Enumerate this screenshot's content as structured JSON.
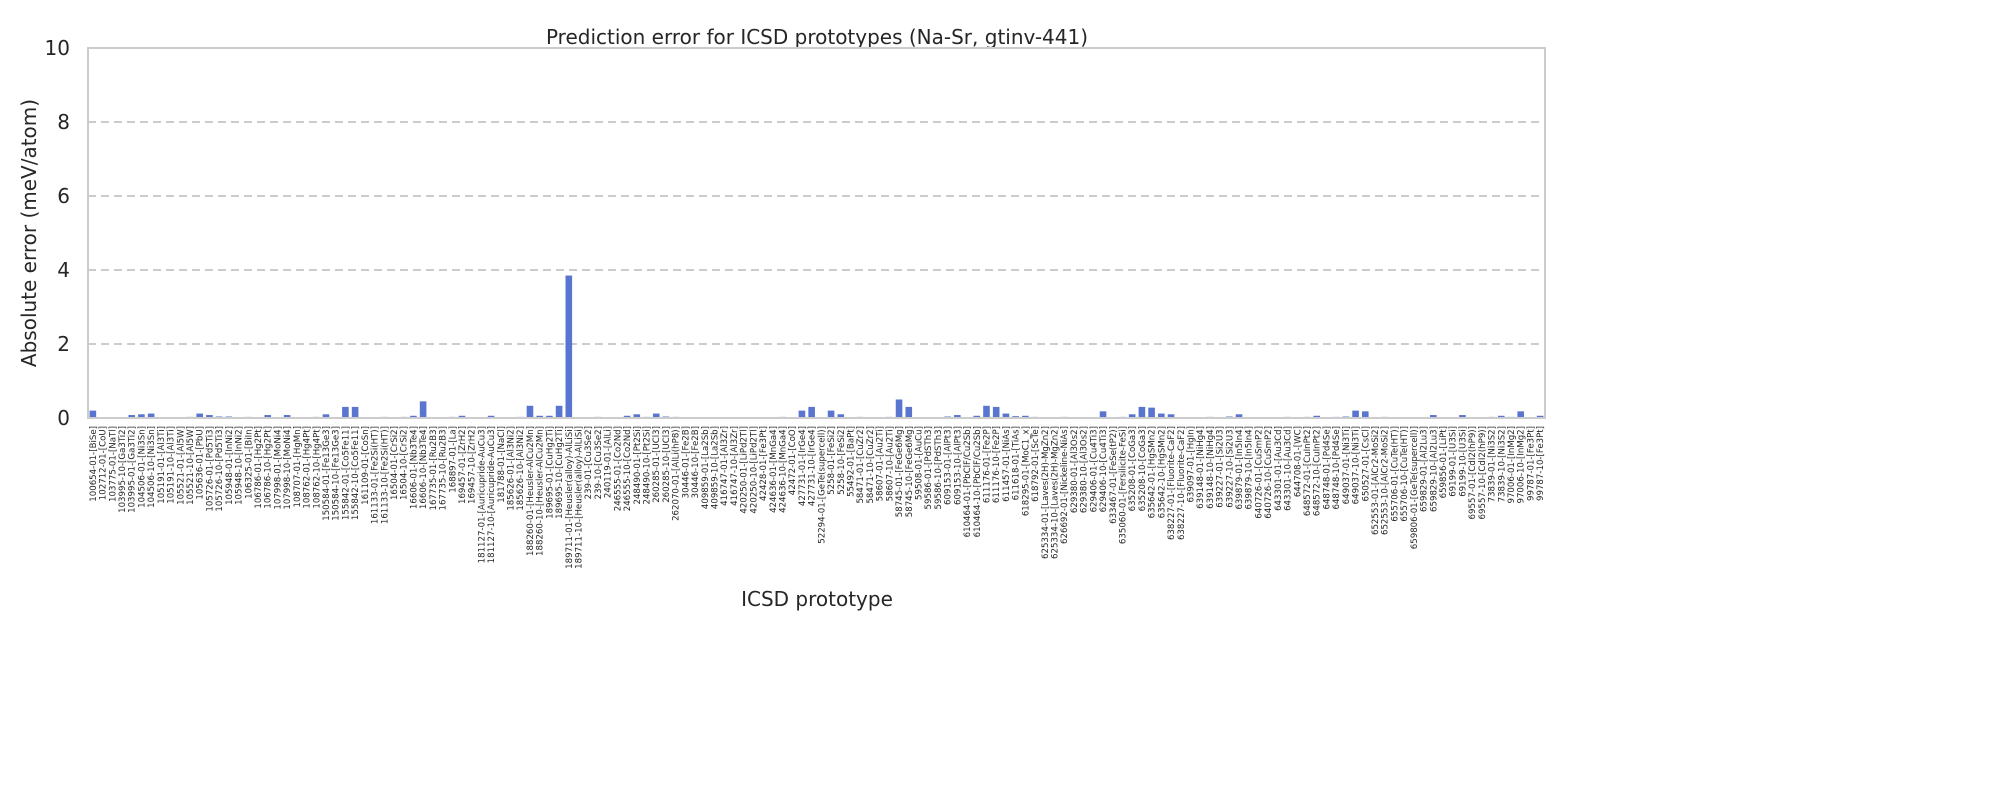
{
  "chart_data": {
    "type": "bar",
    "title": "Prediction error for ICSD prototypes (Na-Sr, gtinv-441)",
    "xlabel": "ICSD prototype",
    "ylabel": "Absolute error (meV/atom)",
    "ylim": [
      0,
      10
    ],
    "yticks": [
      0,
      2,
      4,
      6,
      8,
      10
    ],
    "grid": "horizontal dashed",
    "bar_color": "#5975cf",
    "categories": [
      "100654-01-[BiSe]",
      "102712-01-[CoU]",
      "103775-01-[NaTl]",
      "103995-10-[Ga3Ti2]",
      "103995-01-[Ga3Ti2]",
      "104506-01-[Ni3Sn]",
      "104506-10-[Ni3Sn]",
      "105191-01-[Al3Ti]",
      "105191-10-[Al3Ti]",
      "105521-01-[Al5W]",
      "105521-10-[Al5W]",
      "105636-01-[PbU]",
      "105726-01-[Pd5Ti3]",
      "105726-10-[Pd5Ti3]",
      "105948-01-[InNi2]",
      "105948-10-[InNi2]",
      "106325-01-[BiIn]",
      "106786-01-[Hg2Pt]",
      "106786-10-[Hg2Pt]",
      "107998-01-[MoNi4]",
      "107998-10-[MoNi4]",
      "108707-01-[HgMn]",
      "108762-01-[Hg4Pt]",
      "108762-10-[Hg4Pt]",
      "150584-01-[Fe13Ge3]",
      "150584-10-[Fe13Ge3]",
      "155842-01-[Co5Fe11]",
      "155842-10-[Co5Fe11]",
      "161109-01-[CoSn]",
      "161133-01-[Fe2Si(HT)]",
      "161133-10-[Fe2Si(HT)]",
      "16504-01-[CrSi2]",
      "16504-10-[CrSi2]",
      "16606-01-[Nb3Te4]",
      "16606-10-[Nb3Te4]",
      "167735-01-[Ru2B3]",
      "167735-10-[Ru2B3]",
      "168897-01-[La]",
      "169457-01-[ZrH2]",
      "169457-10-[ZrH2]",
      "181127-01-[Auricupride-AuCu3]",
      "181127-10-[Auricupride-AuCu3]",
      "181788-01-[NaCl]",
      "185626-01-[Al3Ni2]",
      "185626-10-[Al3Ni2]",
      "188260-01-[Heusler-AlCu2Mn]",
      "188260-10-[Heusler-AlCu2Mn]",
      "189695-01-[CuHg2Ti]",
      "189695-10-[CuHg2Ti]",
      "189711-01-[Heusler(alloy)-AlLiSi]",
      "189711-10-[Heusler(alloy)-AlLiSi]",
      "239-01-[Cu3Se2]",
      "239-10-[Cu3Se2]",
      "240119-01-[AlLi]",
      "246555-01-[Co2Nd]",
      "246555-10-[Co2Nd]",
      "248490-01-[Pt2Si]",
      "248490-10-[Pt2Si]",
      "260285-01-[UCl3]",
      "260285-10-[UCl3]",
      "262070-01-[AlLi(hP8)]",
      "30446-01-[Fe2B]",
      "30446-10-[Fe2B]",
      "409859-01-[La2Sb]",
      "409859-10-[La2Sb]",
      "416747-01-[Al3Zr]",
      "416747-10-[Al3Zr]",
      "420250-01-[LiPd2Tl]",
      "420250-10-[LiPd2Tl]",
      "42428-01-[Fe3Pt]",
      "424636-01-[MnGa4]",
      "424636-10-[MnGa4]",
      "42472-01-[CoO]",
      "427731-01-[IrGe4]",
      "427731-10-[IrGe4]",
      "52294-01-[GeTe(supercell)]",
      "5258-01-[FeSi2]",
      "5258-10-[FeSi2]",
      "55492-01-[BaPt]",
      "58471-01-[CuZr2]",
      "58471-10-[CuZr2]",
      "58607-01-[Au2Ti]",
      "58607-10-[Au2Ti]",
      "58745-01-[FeGe6Mg]",
      "58745-10-[FeGe6Mg]",
      "59508-01-[AuCu]",
      "59586-01-[PdSTh3]",
      "59586-10-[PdSTh3]",
      "609153-01-[AlPt3]",
      "609153-10-[AlPt3]",
      "610464-01-[PbClF/Cu2Sb]",
      "610464-10-[PbClF/Cu2Sb]",
      "611176-01-[Fe2P]",
      "611176-10-[Fe2P]",
      "611457-01-[NiAs]",
      "611618-01-[TiAs]",
      "618295-01-[MoC1_x]",
      "618792-01-[ScTe]",
      "625334-01-[Laves(2H)-MgZn2]",
      "625334-10-[Laves(2H)-MgZn2]",
      "626692-01-[Nickeline-NiAs]",
      "629380-01-[Al3Os2]",
      "629380-10-[Al3Os2]",
      "629406-01-[Cu4Ti3]",
      "629406-10-[Cu4Ti3]",
      "633467-01-[FeSe(tP2)]",
      "635060-01-[Fersilicite-FeSi]",
      "635208-01-[CoGa3]",
      "635208-10-[CoGa3]",
      "635642-01-[HgSMn2]",
      "635642-10-[HgSMn2]",
      "638227-01-[Fluorite-CaF2]",
      "638227-10-[Fluorite-CaF2]",
      "639097-01-[HgIn]",
      "639148-01-[NiHg4]",
      "639148-10-[NiHg4]",
      "639227-01-[Si2U3]",
      "639227-10-[Si2U3]",
      "639879-01-[In5In4]",
      "639879-10-[In5In4]",
      "640726-01-[CuSmP2]",
      "640726-10-[CuSmP2]",
      "643301-01-[Au3Cd]",
      "643301-10-[Au3Cd]",
      "644708-01-[WC]",
      "648572-01-[CuInPt2]",
      "648572-10-[CuInPt2]",
      "648748-01-[Pd4Se]",
      "648748-10-[Pd4Se]",
      "649037-01-[Ni3Ti]",
      "649037-10-[Ni3Ti]",
      "650527-01-[CsCl]",
      "652553-01-[AlCr2-MoSi2]",
      "652553-10-[AlCr2-MoSi2]",
      "655706-01-[CuTe(HT)]",
      "655706-10-[CuTe(HT)]",
      "659806-01-[GeTe(supercell)]",
      "659829-01-[Al2Lu3]",
      "659829-10-[Al2Lu3]",
      "659856-01-[LiPt]",
      "69199-01-[U3Si]",
      "69199-10-[U3Si]",
      "69557-01-[CdI2(hP9)]",
      "69557-10-[CdI2(hP9)]",
      "73839-01-[Ni3S2]",
      "73839-10-[Ni3S2]",
      "97006-01-[InMg2]",
      "97006-10-[InMg2]",
      "99787-01-[Fe3Pt]",
      "99787-10-[Fe3Pt]"
    ],
    "values": [
      0.2,
      0,
      0,
      0,
      0.08,
      0.1,
      0.12,
      0,
      0,
      0,
      0.03,
      0.12,
      0.08,
      0.04,
      0.04,
      0,
      0.03,
      0,
      0.08,
      0,
      0.08,
      0,
      0,
      0.03,
      0.1,
      0,
      0.3,
      0.3,
      0,
      0,
      0.03,
      0,
      0.03,
      0.06,
      0.45,
      0,
      0,
      0.03,
      0.06,
      0,
      0,
      0.06,
      0,
      0,
      0.03,
      0.33,
      0.06,
      0.06,
      0.33,
      3.85,
      0,
      0,
      0.03,
      0,
      0,
      0.06,
      0.1,
      0.03,
      0.12,
      0.04,
      0.03,
      0,
      0,
      0,
      0,
      0,
      0,
      0,
      0,
      0,
      0,
      0.03,
      0,
      0.2,
      0.3,
      0,
      0.2,
      0.1,
      0,
      0.03,
      0,
      0,
      0.03,
      0.5,
      0.3,
      0,
      0,
      0,
      0.04,
      0.08,
      0,
      0.06,
      0.33,
      0.3,
      0.12,
      0.05,
      0.06,
      0.03,
      0,
      0,
      0.03,
      0,
      0,
      0,
      0.18,
      0,
      0.03,
      0.1,
      0.3,
      0.28,
      0.12,
      0.1,
      0,
      0,
      0,
      0.03,
      0,
      0.04,
      0.1,
      0,
      0,
      0,
      0,
      0.03,
      0,
      0.03,
      0.06,
      0,
      0.03,
      0.04,
      0.2,
      0.18,
      0,
      0.03,
      0,
      0,
      0,
      0,
      0.08,
      0,
      0,
      0.08,
      0,
      0,
      0.03,
      0.06,
      0.03,
      0.18,
      0,
      0.06
    ]
  }
}
